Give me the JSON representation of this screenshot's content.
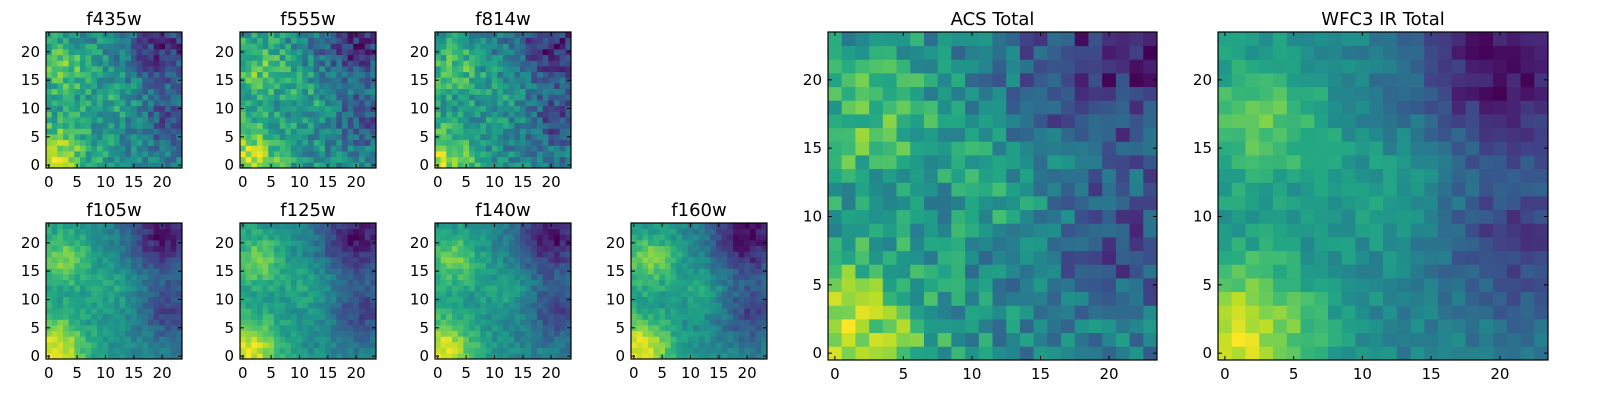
{
  "chart_data": [
    {
      "id": "f435w",
      "type": "heatmap",
      "title": "f435w",
      "grid_size": 24,
      "xticks": [
        0,
        5,
        10,
        15,
        20
      ],
      "yticks": [
        0,
        5,
        10,
        15,
        20
      ],
      "seed": 11,
      "pattern": "noisy",
      "colormap": "viridis"
    },
    {
      "id": "f555w",
      "type": "heatmap",
      "title": "f555w",
      "grid_size": 24,
      "xticks": [
        0,
        5,
        10,
        15,
        20
      ],
      "yticks": [
        0,
        5,
        10,
        15,
        20
      ],
      "seed": 23,
      "pattern": "noisy",
      "colormap": "viridis"
    },
    {
      "id": "f814w",
      "type": "heatmap",
      "title": "f814w",
      "grid_size": 24,
      "xticks": [
        0,
        5,
        10,
        15,
        20
      ],
      "yticks": [
        0,
        5,
        10,
        15,
        20
      ],
      "seed": 37,
      "pattern": "noisy",
      "colormap": "viridis"
    },
    {
      "id": "f105w",
      "type": "heatmap",
      "title": "f105w",
      "grid_size": 24,
      "xticks": [
        0,
        5,
        10,
        15,
        20
      ],
      "yticks": [
        0,
        5,
        10,
        15,
        20
      ],
      "seed": 41,
      "pattern": "smooth",
      "colormap": "viridis"
    },
    {
      "id": "f125w",
      "type": "heatmap",
      "title": "f125w",
      "grid_size": 24,
      "xticks": [
        0,
        5,
        10,
        15,
        20
      ],
      "yticks": [
        0,
        5,
        10,
        15,
        20
      ],
      "seed": 53,
      "pattern": "smooth",
      "colormap": "viridis"
    },
    {
      "id": "f140w",
      "type": "heatmap",
      "title": "f140w",
      "grid_size": 24,
      "xticks": [
        0,
        5,
        10,
        15,
        20
      ],
      "yticks": [
        0,
        5,
        10,
        15,
        20
      ],
      "seed": 67,
      "pattern": "smooth",
      "colormap": "viridis"
    },
    {
      "id": "f160w",
      "type": "heatmap",
      "title": "f160w",
      "grid_size": 24,
      "xticks": [
        0,
        5,
        10,
        15,
        20
      ],
      "yticks": [
        0,
        5,
        10,
        15,
        20
      ],
      "seed": 71,
      "pattern": "smooth",
      "colormap": "viridis"
    },
    {
      "id": "acs-total",
      "type": "heatmap",
      "title": "ACS Total",
      "grid_size": 24,
      "xticks": [
        0,
        5,
        10,
        15,
        20
      ],
      "yticks": [
        0,
        5,
        10,
        15,
        20
      ],
      "seed": 83,
      "pattern": "noisy",
      "colormap": "viridis"
    },
    {
      "id": "wfc3-ir-total",
      "type": "heatmap",
      "title": "WFC3 IR Total",
      "grid_size": 24,
      "xticks": [
        0,
        5,
        10,
        15,
        20
      ],
      "yticks": [
        0,
        5,
        10,
        15,
        20
      ],
      "seed": 97,
      "pattern": "smooth",
      "colormap": "viridis"
    }
  ],
  "colors": {
    "frame": "#000000",
    "background": "#ffffff"
  }
}
